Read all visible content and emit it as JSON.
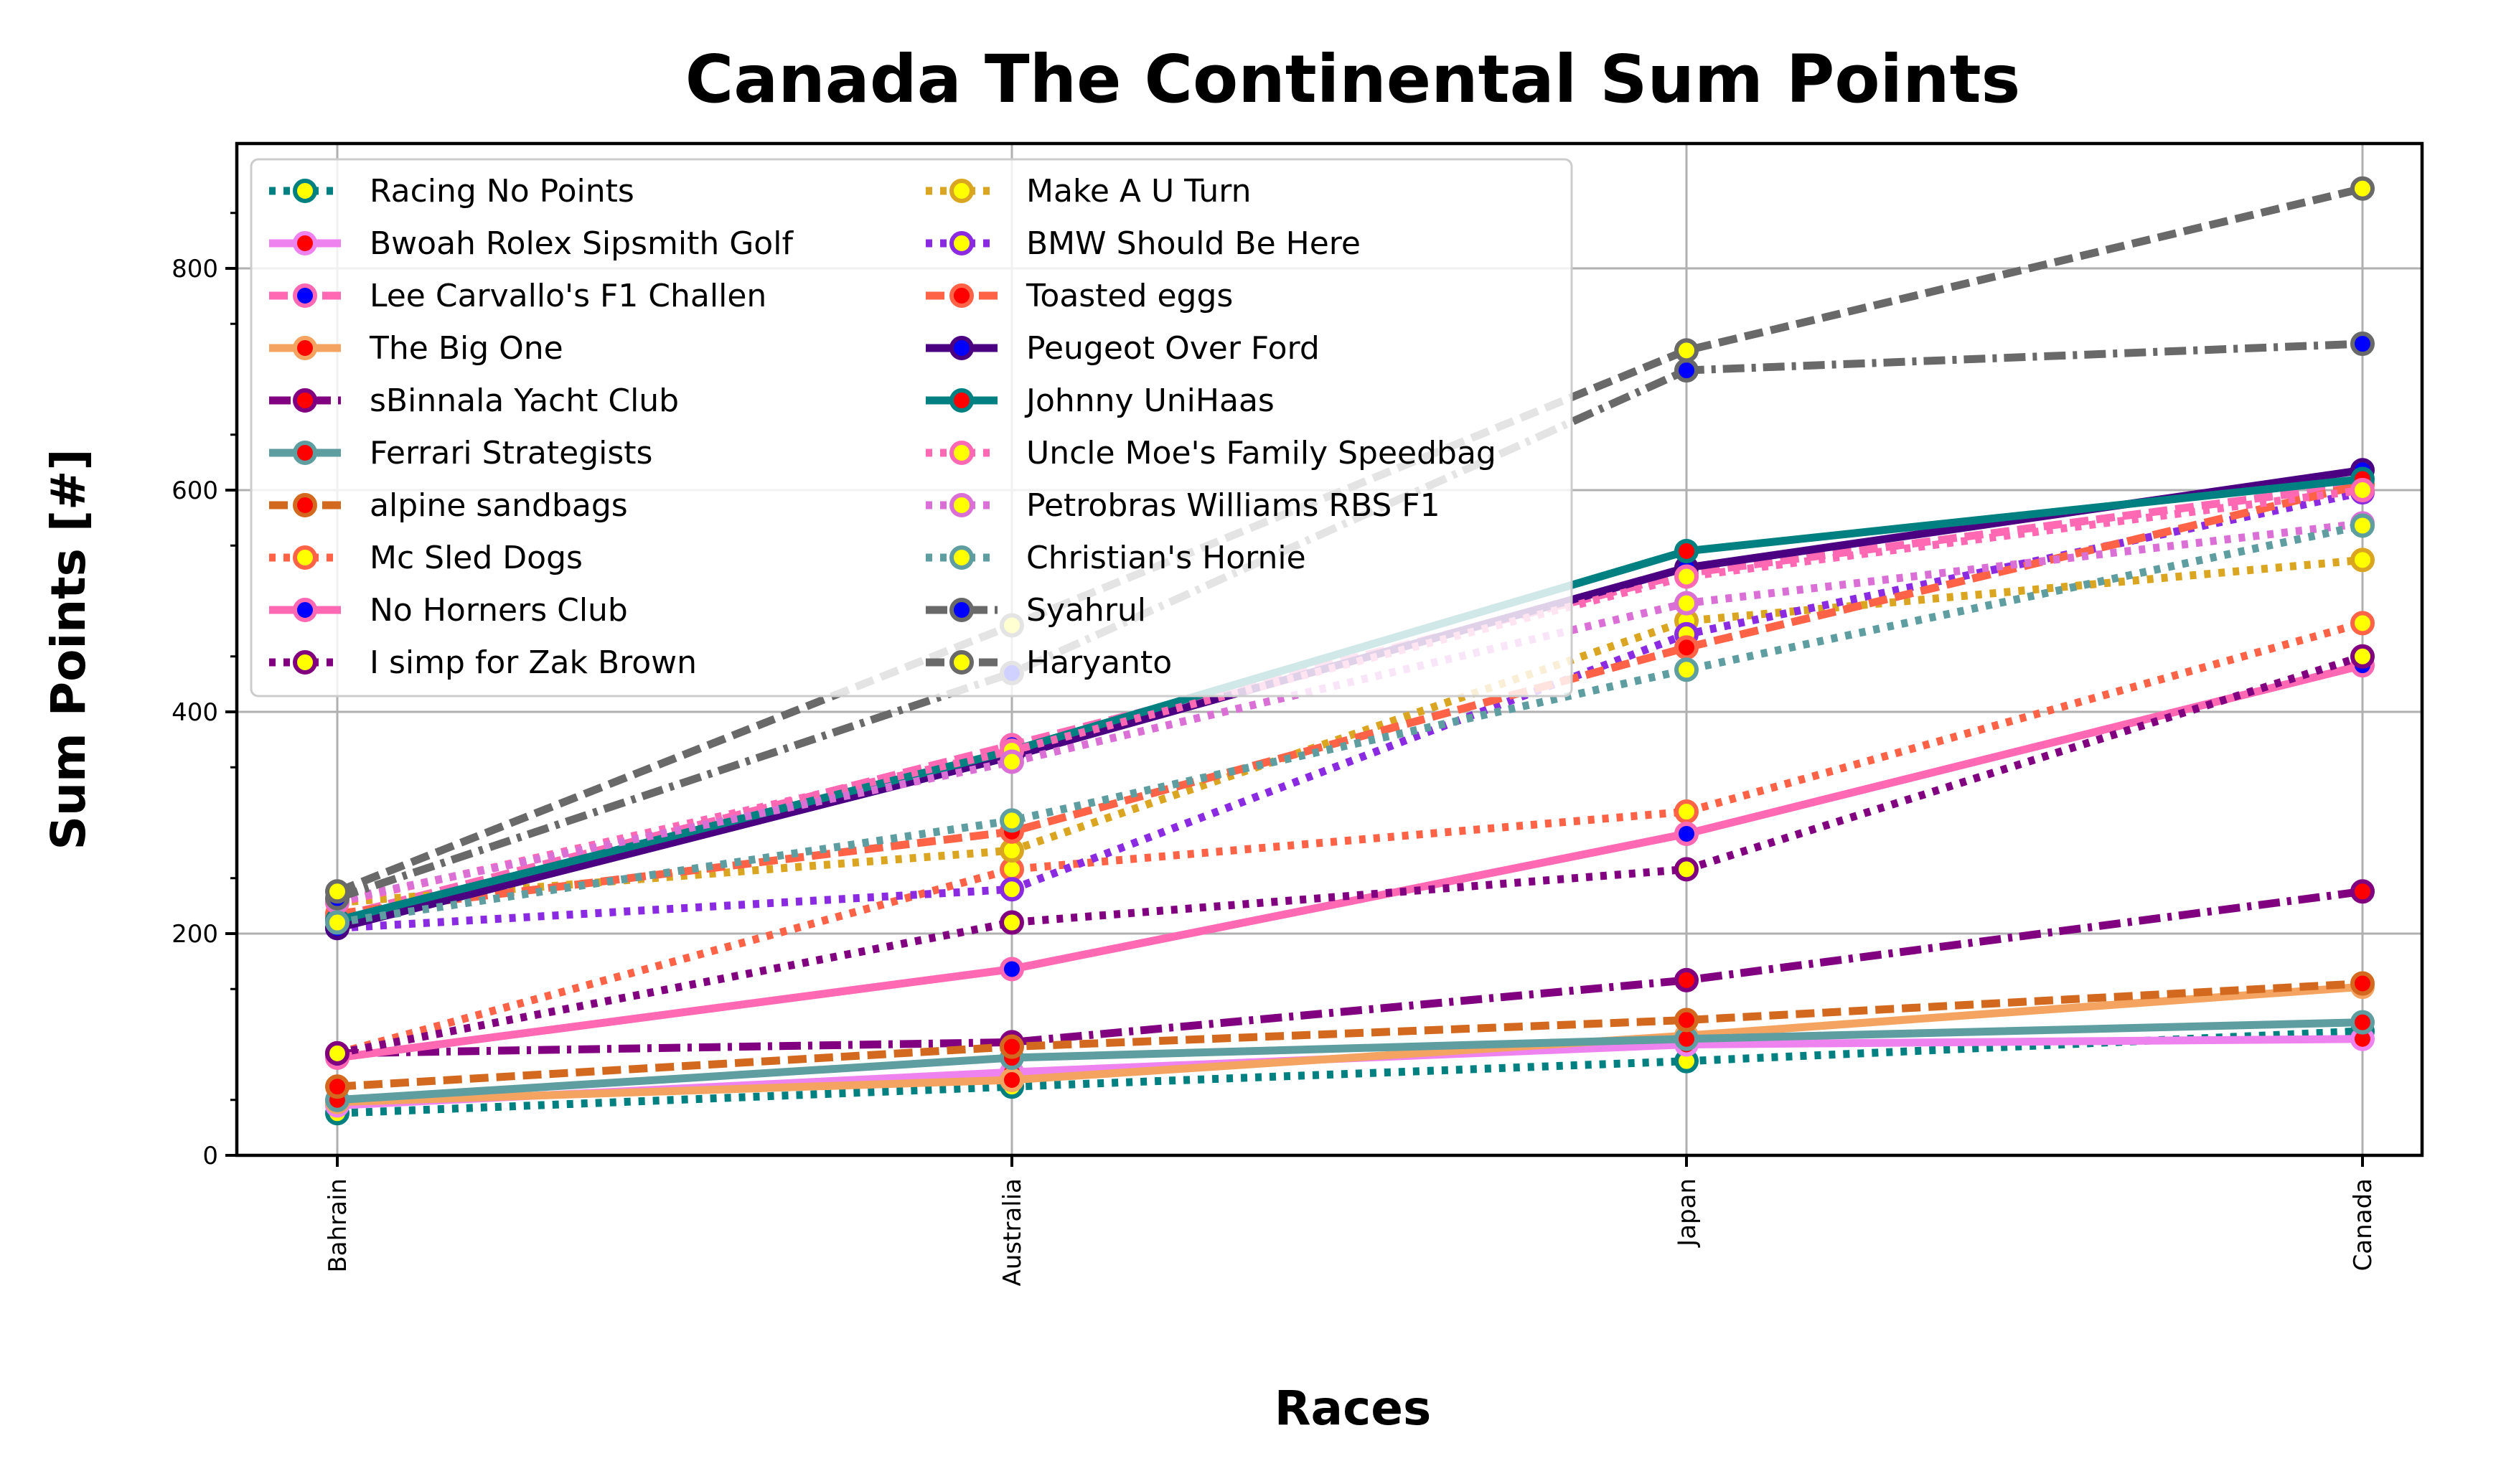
{
  "chart_data": {
    "type": "line",
    "title": "Canada The Continental Sum Points",
    "xlabel": "Races",
    "ylabel": "Sum Points [#]",
    "categories": [
      "Bahrain",
      "Australia",
      "Japan",
      "Canada"
    ],
    "ylim": [
      0,
      910
    ],
    "yticks": [
      0,
      200,
      400,
      600,
      800
    ],
    "grid": true,
    "legend_position": "top-left",
    "legend_columns": 2,
    "series": [
      {
        "name": "Racing No Points",
        "values": [
          38,
          62,
          85,
          112
        ],
        "color": "#008080",
        "dash": "dotted",
        "marker_edge": "#008080",
        "marker_face": "#ffff00"
      },
      {
        "name": "Bwoah Rolex Sipsmith Golf",
        "values": [
          45,
          75,
          100,
          105
        ],
        "color": "#ee82ee",
        "dash": "solid",
        "marker_edge": "#ee82ee",
        "marker_face": "#ff0000"
      },
      {
        "name": "Lee Carvallo's F1 Challen",
        "values": [
          215,
          370,
          525,
          605
        ],
        "color": "#ff69b4",
        "dash": "dashed",
        "marker_edge": "#ff69b4",
        "marker_face": "#0000ff"
      },
      {
        "name": "The Big One",
        "values": [
          48,
          68,
          108,
          152
        ],
        "color": "#f4a460",
        "dash": "solid",
        "marker_edge": "#f4a460",
        "marker_face": "#ff0000"
      },
      {
        "name": "sBinnala Yacht Club",
        "values": [
          92,
          102,
          158,
          238
        ],
        "color": "#800080",
        "dash": "dashdot",
        "marker_edge": "#800080",
        "marker_face": "#ff0000"
      },
      {
        "name": "Ferrari Strategists",
        "values": [
          50,
          88,
          105,
          120
        ],
        "color": "#5f9ea0",
        "dash": "solid",
        "marker_edge": "#5f9ea0",
        "marker_face": "#ff0000"
      },
      {
        "name": "alpine sandbags",
        "values": [
          62,
          98,
          122,
          155
        ],
        "color": "#d2691e",
        "dash": "dashed",
        "marker_edge": "#d2691e",
        "marker_face": "#ff0000"
      },
      {
        "name": "Mc Sled Dogs",
        "values": [
          92,
          258,
          310,
          480
        ],
        "color": "#ff6347",
        "dash": "dotted",
        "marker_edge": "#ff6347",
        "marker_face": "#ffff00"
      },
      {
        "name": "No Horners Club",
        "values": [
          88,
          168,
          290,
          442
        ],
        "color": "#ff69b4",
        "dash": "solid",
        "marker_edge": "#ff69b4",
        "marker_face": "#0000ff"
      },
      {
        "name": "I simp for Zak Brown",
        "values": [
          92,
          210,
          258,
          450
        ],
        "color": "#800080",
        "dash": "dotted",
        "marker_edge": "#800080",
        "marker_face": "#ffff00"
      },
      {
        "name": "Make A U Turn",
        "values": [
          228,
          275,
          482,
          537
        ],
        "color": "#daa520",
        "dash": "dotted",
        "marker_edge": "#daa520",
        "marker_face": "#ffff00"
      },
      {
        "name": "BMW Should Be Here",
        "values": [
          205,
          240,
          470,
          598
        ],
        "color": "#8a2be2",
        "dash": "dotted",
        "marker_edge": "#8a2be2",
        "marker_face": "#ffff00"
      },
      {
        "name": "Toasted eggs",
        "values": [
          218,
          292,
          458,
          605
        ],
        "color": "#ff6347",
        "dash": "dashed",
        "marker_edge": "#ff6347",
        "marker_face": "#ff0000"
      },
      {
        "name": "Peugeot Over Ford",
        "values": [
          205,
          360,
          530,
          618
        ],
        "color": "#4b0082",
        "dash": "solid",
        "marker_edge": "#4b0082",
        "marker_face": "#0000ff"
      },
      {
        "name": "Johnny UniHaas",
        "values": [
          212,
          365,
          545,
          610
        ],
        "color": "#008080",
        "dash": "solid",
        "marker_edge": "#008080",
        "marker_face": "#ff0000"
      },
      {
        "name": "Uncle Moe's Family Speedbag",
        "values": [
          228,
          365,
          522,
          600
        ],
        "color": "#ff69b4",
        "dash": "dotted",
        "marker_edge": "#ff69b4",
        "marker_face": "#ffff00"
      },
      {
        "name": "Petrobras Williams RBS F1",
        "values": [
          230,
          355,
          498,
          570
        ],
        "color": "#da70d6",
        "dash": "dotted",
        "marker_edge": "#da70d6",
        "marker_face": "#ffff00"
      },
      {
        "name": "Christian's Hornie",
        "values": [
          210,
          302,
          438,
          568
        ],
        "color": "#5f9ea0",
        "dash": "dotted",
        "marker_edge": "#5f9ea0",
        "marker_face": "#ffff00"
      },
      {
        "name": "Syahrul",
        "values": [
          232,
          435,
          708,
          732
        ],
        "color": "#696969",
        "dash": "dashdot",
        "marker_edge": "#696969",
        "marker_face": "#0000ff"
      },
      {
        "name": "Haryanto",
        "values": [
          238,
          478,
          726,
          872
        ],
        "color": "#696969",
        "dash": "dashed",
        "marker_edge": "#696969",
        "marker_face": "#ffff00"
      }
    ]
  }
}
